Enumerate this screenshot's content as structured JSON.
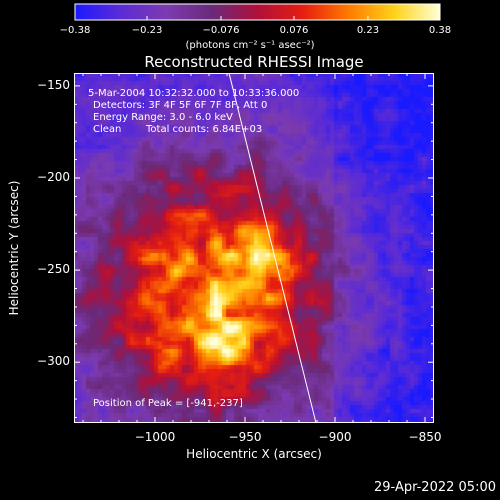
{
  "chart_data": {
    "type": "heatmap",
    "title": "Reconstructed RHESSI Image",
    "xlabel": "Heliocentric X (arcsec)",
    "ylabel": "Heliocentric Y (arcsec)",
    "xlim": [
      -1045,
      -845
    ],
    "ylim": [
      -333,
      -143
    ],
    "x_ticks": [
      -1000,
      -950,
      -900,
      -850
    ],
    "x_tick_labels": [
      "−1000",
      "−950",
      "−900",
      "−850"
    ],
    "y_ticks": [
      -150,
      -200,
      -250,
      -300
    ],
    "y_tick_labels": [
      "−150",
      "−200",
      "−250",
      "−300"
    ],
    "colorbar": {
      "range": [
        -0.38,
        0.38
      ],
      "ticks": [
        -0.38,
        -0.23,
        -0.076,
        0.076,
        0.23,
        0.38
      ],
      "tick_labels": [
        "−0.38",
        "−0.23",
        "−0.076",
        "0.076",
        "0.23",
        "0.38"
      ],
      "units": "(photons cm⁻² s⁻¹ asec⁻²)",
      "colors": [
        "#1a1aff",
        "#5b2bd6",
        "#7c3bb0",
        "#6a2a7a",
        "#b0103a",
        "#e61e10",
        "#ff7a00",
        "#ffd21a",
        "#ffffd8"
      ]
    },
    "annotations": {
      "time_range": "5-Mar-2004 10:32:32.000 to 10:33:36.000",
      "detectors": "Detectors: 3F 4F 5F 6F 7F 8F, Att 0",
      "energy_range": "Energy Range: 3.0 - 6.0 keV",
      "clean_label": "Clean",
      "total_counts": "Total counts: 6.84E+03",
      "peak": "Position of Peak = [-941,-237]"
    },
    "peaks": [
      {
        "x": -941,
        "y": -237,
        "value": 0.38
      },
      {
        "x": -965,
        "y": -292,
        "value": 0.36
      }
    ]
  },
  "footer": {
    "timestamp": "29-Apr-2022 05:00"
  }
}
